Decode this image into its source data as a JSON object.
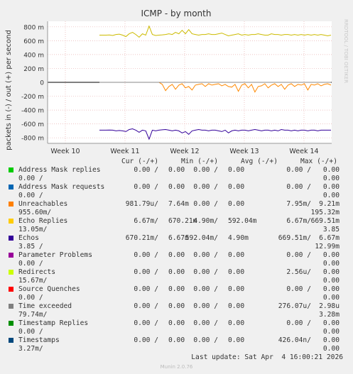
{
  "chart_data": {
    "type": "line",
    "title": "ICMP - by month",
    "ylabel": "packets in (-) / out (+) per second",
    "watermark": "RRDTOOL / TOBI OETIKER",
    "ylim": [
      -880,
      880
    ],
    "y_ticks": [
      {
        "value": 800,
        "label": "800 m"
      },
      {
        "value": 600,
        "label": "600 m"
      },
      {
        "value": 400,
        "label": "400 m"
      },
      {
        "value": 200,
        "label": "200 m"
      },
      {
        "value": 0,
        "label": "0"
      },
      {
        "value": -200,
        "label": "-200 m"
      },
      {
        "value": -400,
        "label": "-400 m"
      },
      {
        "value": -600,
        "label": "-600 m"
      },
      {
        "value": -800,
        "label": "-800 m"
      }
    ],
    "x_ticks": [
      "Week 10",
      "Week 11",
      "Week 12",
      "Week 13",
      "Week 14"
    ],
    "series": [
      {
        "name": "Echo Replies",
        "color": "#ccbb00",
        "y": [
          680,
          680,
          680,
          682,
          675,
          690,
          695,
          680,
          660,
          700,
          720,
          690,
          650,
          700,
          680,
          810,
          690,
          675,
          680,
          685,
          690,
          700,
          690,
          720,
          700,
          750,
          700,
          760,
          700,
          690,
          680,
          690,
          690,
          700,
          690,
          690,
          700,
          710,
          690,
          670,
          680,
          690,
          700,
          680,
          690,
          680,
          690,
          690,
          700,
          690,
          680,
          680,
          700,
          690,
          690,
          680,
          690,
          690,
          680,
          690,
          680,
          690,
          680,
          690,
          680,
          690,
          680,
          690,
          680,
          670,
          680
        ]
      },
      {
        "name": "Echos",
        "color": "#330099",
        "y": [
          -690,
          -690,
          -690,
          -688,
          -690,
          -700,
          -695,
          -700,
          -710,
          -680,
          -670,
          -690,
          -720,
          -690,
          -700,
          -820,
          -690,
          -700,
          -690,
          -685,
          -680,
          -690,
          -700,
          -690,
          -700,
          -730,
          -710,
          -750,
          -700,
          -690,
          -680,
          -690,
          -690,
          -700,
          -690,
          -690,
          -700,
          -710,
          -690,
          -730,
          -700,
          -690,
          -700,
          -690,
          -690,
          -700,
          -690,
          -680,
          -690,
          -700,
          -690,
          -690,
          -700,
          -690,
          -700,
          -680,
          -690,
          -690,
          -700,
          -690,
          -700,
          -690,
          -690,
          -700,
          -690,
          -690,
          -700,
          -690,
          -690,
          -690,
          -690
        ]
      },
      {
        "name": "Unreachables",
        "color": "#ff8800",
        "y": [
          0,
          0,
          0,
          0,
          0,
          0,
          0,
          0,
          0,
          0,
          0,
          0,
          0,
          0,
          0,
          0,
          0,
          0,
          0,
          -30,
          -120,
          -60,
          -30,
          -100,
          -40,
          -20,
          -80,
          -60,
          -110,
          -40,
          -30,
          -20,
          -60,
          -20,
          -40,
          -30,
          -20,
          -50,
          -30,
          -60,
          -70,
          -30,
          -130,
          -40,
          -20,
          -80,
          -30,
          -140,
          -60,
          -50,
          -20,
          -80,
          -40,
          -20,
          -60,
          -30,
          -100,
          -40,
          -20,
          -60,
          -30,
          -40,
          -20,
          -110,
          -30,
          -40,
          -20,
          -50,
          -30,
          -20,
          -40
        ]
      },
      {
        "name": "Time exceeded",
        "color": "#888888",
        "y": [
          0,
          0,
          0,
          0,
          0,
          0,
          0,
          0,
          0,
          0,
          0,
          0,
          0,
          0,
          0,
          0,
          0,
          0,
          0,
          0,
          0,
          0,
          0,
          0,
          0,
          0,
          0,
          0,
          0,
          0,
          0,
          0,
          0,
          0,
          0,
          0,
          0,
          0,
          0,
          0,
          0,
          0,
          0,
          0,
          0,
          0,
          0,
          0,
          0,
          0,
          0,
          0,
          0,
          0,
          0,
          0,
          0,
          0,
          0,
          0,
          0,
          0,
          0,
          0,
          0,
          0,
          0,
          0,
          0,
          0,
          0
        ]
      }
    ],
    "legend_header": {
      "cur": "Cur (-/+)",
      "min": "Min (-/+)",
      "avg": "Avg (-/+)",
      "max": "Max (-/+)"
    },
    "legend": [
      {
        "name": "Address Mask replies",
        "color": "#00cc00",
        "cur": "0.00 /",
        "cur2": "0.00",
        "min": "0.00 /",
        "min2": "0.00",
        "avg": "0.00 /",
        "avg2": "0.00",
        "max": "0.00",
        "max_wrap": "0.00 /",
        "max2": "0.00"
      },
      {
        "name": "Address Mask requests",
        "color": "#0066b3",
        "cur": "0.00 /",
        "cur2": "0.00",
        "min": "0.00 /",
        "min2": "0.00",
        "avg": "0.00 /",
        "avg2": "0.00",
        "max": "0.00",
        "max_wrap": "0.00 /",
        "max2": "0.00"
      },
      {
        "name": "Unreachables",
        "color": "#ff8000",
        "cur": "981.79u/",
        "cur2": "7.64m",
        "min": "0.00 /",
        "min2": "0.00",
        "avg": "7.95m/",
        "avg2": "9.21m",
        "max": "195.32m",
        "max_wrap": "955.60m/",
        "max2": ""
      },
      {
        "name": "Echo Replies",
        "color": "#ffcc00",
        "cur": "6.67m/",
        "cur2": "670.21m",
        "min": "4.90m/",
        "min2": "592.04m",
        "avg": "6.67m/",
        "avg2": "669.51m",
        "max": "3.85",
        "max_wrap": "13.05m/",
        "max2": ""
      },
      {
        "name": "Echos",
        "color": "#330099",
        "cur": "670.21m/",
        "cur2": "6.67m",
        "min": "592.04m/",
        "min2": "4.90m",
        "avg": "669.51m/",
        "avg2": "6.67m",
        "max": "12.99m",
        "max_wrap": "3.85 /",
        "max2": ""
      },
      {
        "name": "Parameter Problems",
        "color": "#990099",
        "cur": "0.00 /",
        "cur2": "0.00",
        "min": "0.00 /",
        "min2": "0.00",
        "avg": "0.00 /",
        "avg2": "0.00",
        "max": "0.00",
        "max_wrap": "0.00 /",
        "max2": ""
      },
      {
        "name": "Redirects",
        "color": "#ccff00",
        "cur": "0.00 /",
        "cur2": "0.00",
        "min": "0.00 /",
        "min2": "0.00",
        "avg": "2.56u/",
        "avg2": "0.00",
        "max": "0.00",
        "max_wrap": "15.67m/",
        "max2": ""
      },
      {
        "name": "Source Quenches",
        "color": "#ff0000",
        "cur": "0.00 /",
        "cur2": "0.00",
        "min": "0.00 /",
        "min2": "0.00",
        "avg": "0.00 /",
        "avg2": "0.00",
        "max": "0.00",
        "max_wrap": "0.00 /",
        "max2": ""
      },
      {
        "name": "Time exceeded",
        "color": "#808080",
        "cur": "0.00 /",
        "cur2": "0.00",
        "min": "0.00 /",
        "min2": "0.00",
        "avg": "276.07u/",
        "avg2": "2.98u",
        "max": "3.28m",
        "max_wrap": "79.74m/",
        "max2": ""
      },
      {
        "name": "Timestamp Replies",
        "color": "#008f00",
        "cur": "0.00 /",
        "cur2": "0.00",
        "min": "0.00 /",
        "min2": "0.00",
        "avg": "0.00 /",
        "avg2": "0.00",
        "max": "0.00",
        "max_wrap": "0.00 /",
        "max2": ""
      },
      {
        "name": "Timestamps",
        "color": "#00487d",
        "cur": "0.00 /",
        "cur2": "0.00",
        "min": "0.00 /",
        "min2": "0.00",
        "avg": "426.04n/",
        "avg2": "0.00",
        "max": "0.00",
        "max_wrap": "3.27m/",
        "max2": ""
      }
    ],
    "last_update": "Last update: Sat Apr  4 16:00:21 2026",
    "footer": "Munin 2.0.76"
  }
}
